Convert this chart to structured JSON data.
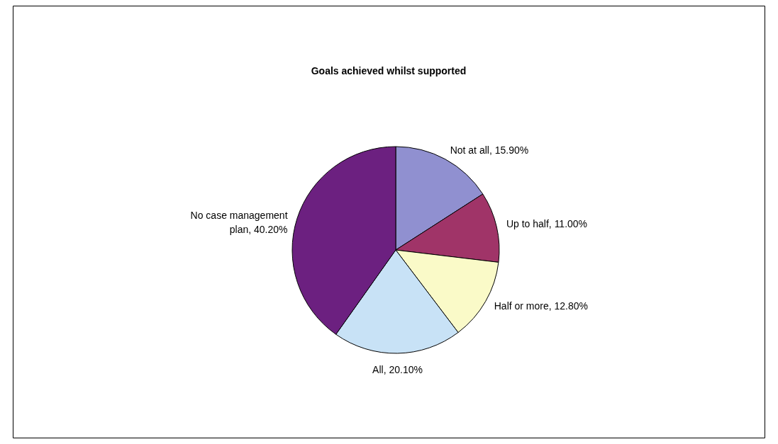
{
  "chart_data": {
    "type": "pie",
    "title": "Goals achieved whilst supported",
    "categories": [
      "Not at all",
      "Up to half",
      "Half or more",
      "All",
      "No case management plan"
    ],
    "values": [
      15.9,
      11.0,
      12.8,
      20.1,
      40.2
    ],
    "value_labels": [
      "15.90%",
      "11.00%",
      "12.80%",
      "20.10%",
      "40.20%"
    ],
    "colors": [
      "#9090d0",
      "#a03468",
      "#fafac8",
      "#c8e2f6",
      "#6c2080"
    ],
    "legend": false
  }
}
